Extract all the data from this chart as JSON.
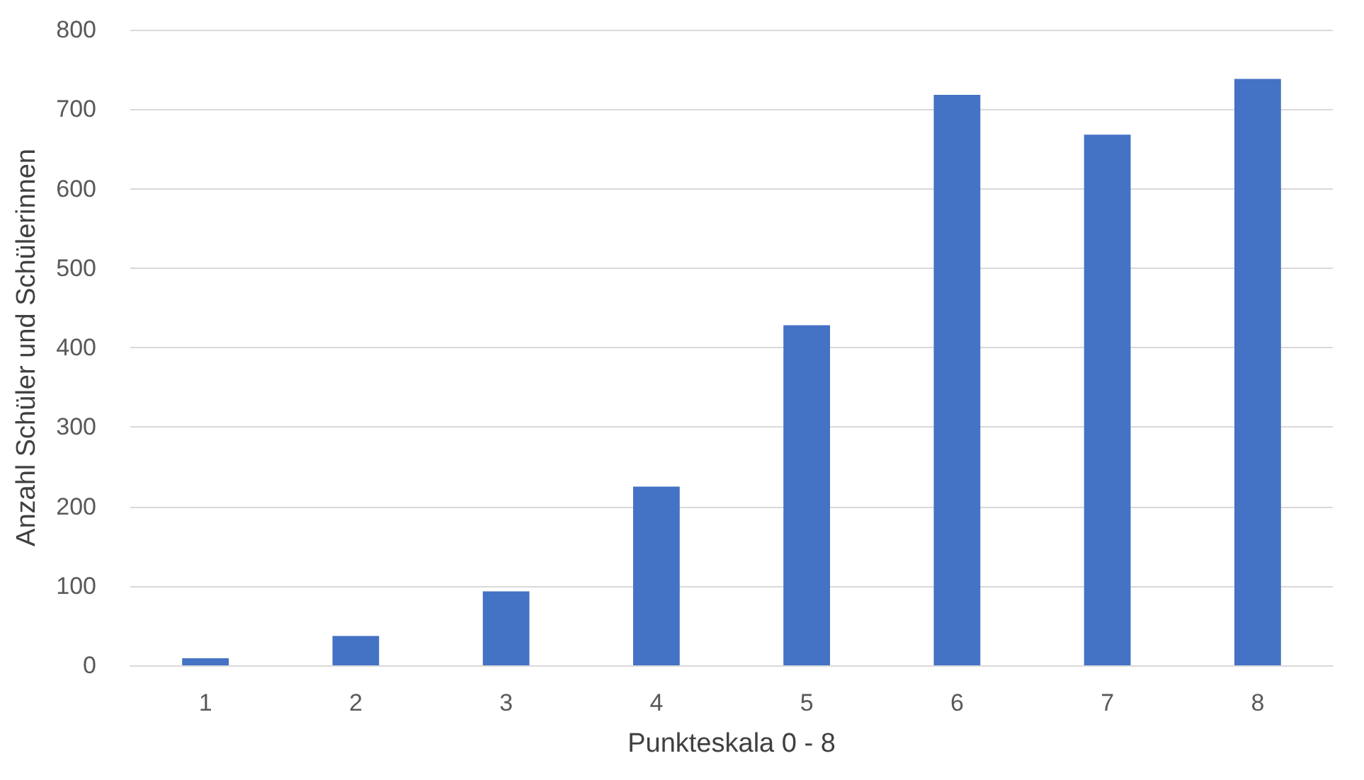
{
  "chart_data": {
    "type": "bar",
    "xlabel": "Punkteskala 0 - 8",
    "ylabel": "Anzahl Schüler und Schülerinnen",
    "categories": [
      "1",
      "2",
      "3",
      "4",
      "5",
      "6",
      "7",
      "8"
    ],
    "values": [
      9,
      37,
      93,
      225,
      428,
      718,
      668,
      738
    ],
    "color": "#4472c4",
    "ylim": [
      0,
      800
    ],
    "yticks": [
      0,
      100,
      200,
      300,
      400,
      500,
      600,
      700,
      800
    ],
    "grid": "y"
  }
}
